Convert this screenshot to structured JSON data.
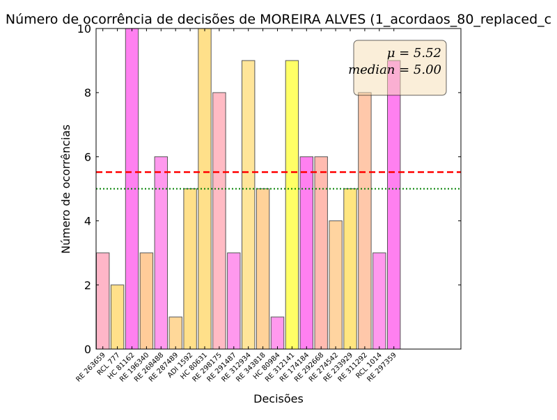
{
  "chart_data": {
    "type": "bar",
    "title": "Número de ocorrência de decisões de MOREIRA ALVES (1_acordaos_80_replaced_c",
    "xlabel": "Decisões",
    "ylabel": "Número de ocorrências",
    "ylim": [
      0,
      10
    ],
    "yticks": [
      "0",
      "2",
      "4",
      "6",
      "8",
      "10"
    ],
    "grid": false,
    "categories": [
      "RE 263659",
      "RCL 777",
      "HC 81162",
      "RE 196340",
      "RE 268488",
      "RE 287489",
      "ADI 1592",
      "HC 80631",
      "RE 298175",
      "RE 291487",
      "RE 312934",
      "RE 343818",
      "HC 80984",
      "RE 312141",
      "RE 174184",
      "RE 292668",
      "RE 274542",
      "RE 233929",
      "RE 311292",
      "RCL 1014",
      "RE 297359"
    ],
    "values": [
      3,
      2,
      10,
      3,
      6,
      1,
      5,
      10,
      8,
      3,
      9,
      5,
      1,
      9,
      6,
      6,
      4,
      5,
      8,
      3,
      9
    ],
    "bar_colors": [
      "#ffb6c8",
      "#ffe08a",
      "#ff80f0",
      "#ffcc99",
      "#ff99ee",
      "#ffd899",
      "#ffe08a",
      "#ffe08a",
      "#ffbbc4",
      "#ff99ee",
      "#ffe599",
      "#ffd299",
      "#ff99ee",
      "#ffff66",
      "#ff80f0",
      "#ffbbb0",
      "#ffd4a0",
      "#ffe680",
      "#ffc8aa",
      "#ff99ee",
      "#ff80f0"
    ],
    "bar_alpha": 0.5,
    "mean": 5.52,
    "median": 5.0,
    "mean_color": "#ff0000",
    "median_color": "#008000",
    "stats_box": {
      "mean_label": "μ = 5.52",
      "median_label": "median = 5.00",
      "position": "top-right",
      "facecolor": "#f5deb3"
    }
  }
}
